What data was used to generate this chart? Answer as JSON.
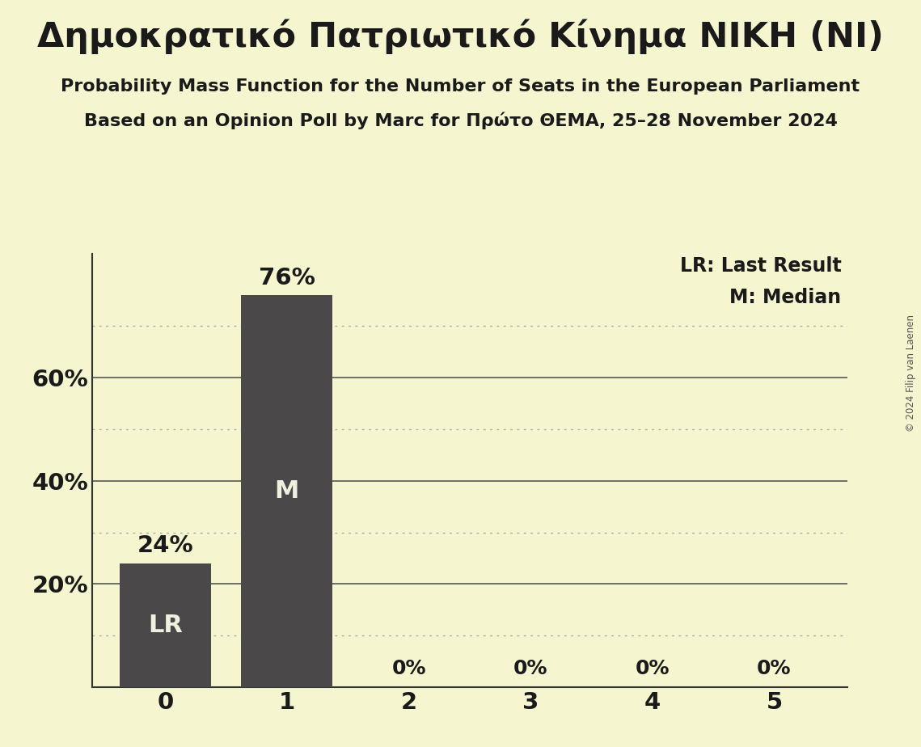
{
  "title": "Δημοκρατικό Πατριωτικό Κίνημα ΝΙΚΗ (NI)",
  "subtitle1": "Probability Mass Function for the Number of Seats in the European Parliament",
  "subtitle2": "Based on an Opinion Poll by Marc for Πρώτο ΘΕΜΑ, 25–28 November 2024",
  "copyright": "© 2024 Filip van Laenen",
  "seats": [
    0,
    1,
    2,
    3,
    4,
    5
  ],
  "probabilities": [
    0.24,
    0.76,
    0.0,
    0.0,
    0.0,
    0.0
  ],
  "bar_color": "#4a4848",
  "background_color": "#f5f5d0",
  "text_color": "#1a1a1a",
  "bar_labels": [
    "LR",
    "M",
    "",
    "",
    "",
    ""
  ],
  "pct_labels": [
    "24%",
    "76%",
    "0%",
    "0%",
    "0%",
    "0%"
  ],
  "ylim": [
    0,
    0.84
  ],
  "yticks": [
    0.0,
    0.2,
    0.4,
    0.6
  ],
  "ytick_labels": [
    "",
    "20%",
    "40%",
    "60%"
  ],
  "dotted_lines": [
    0.1,
    0.3,
    0.5,
    0.7
  ],
  "solid_lines": [
    0.2,
    0.4,
    0.6
  ],
  "legend_lr": "LR: Last Result",
  "legend_m": "M: Median",
  "bar_label_color": "#f0f0e0"
}
